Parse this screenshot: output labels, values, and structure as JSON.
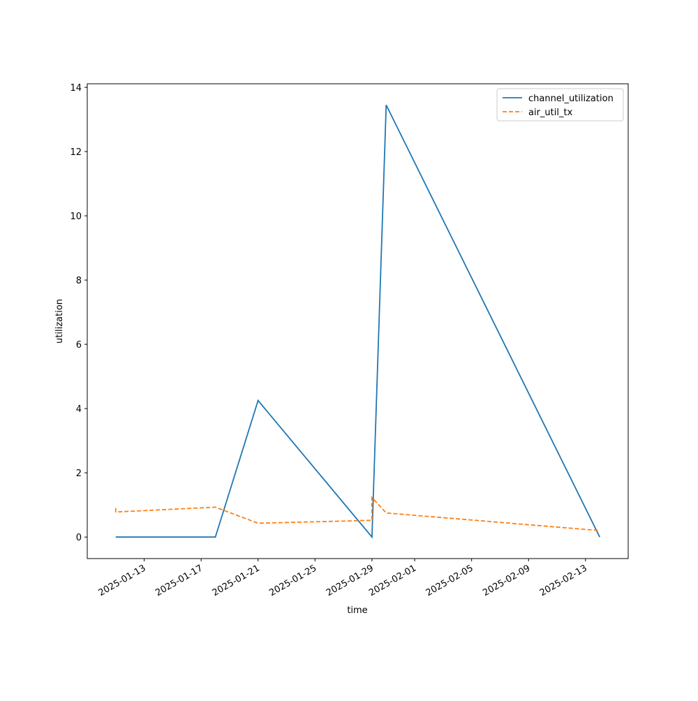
{
  "chart_data": {
    "type": "line",
    "x_label": "time",
    "y_label": "utilization",
    "x": [
      "2025-01-11",
      "2025-01-11",
      "2025-01-18",
      "2025-01-21",
      "2025-01-29",
      "2025-01-29",
      "2025-01-30",
      "2025-02-14"
    ],
    "series": [
      {
        "name": "channel_utilization",
        "color": "#1f77b4",
        "dash": "solid",
        "values": [
          0,
          0,
          0,
          4.25,
          0,
          0,
          13.45,
          0
        ]
      },
      {
        "name": "air_util_tx",
        "color": "#ff7f0e",
        "dash": "dashed",
        "values": [
          0.9,
          0.78,
          0.93,
          0.43,
          0.52,
          1.23,
          0.75,
          0.2
        ]
      }
    ],
    "xlim": [
      "2025-01-09",
      "2025-02-16"
    ],
    "xticks": [
      "2025-01-13",
      "2025-01-17",
      "2025-01-21",
      "2025-01-25",
      "2025-01-29",
      "2025-02-01",
      "2025-02-05",
      "2025-02-09",
      "2025-02-13"
    ],
    "ylim": [
      -0.67,
      14.11
    ],
    "yticks": [
      0,
      2,
      4,
      6,
      8,
      10,
      12,
      14
    ],
    "grid": false,
    "legend": "upper right"
  }
}
